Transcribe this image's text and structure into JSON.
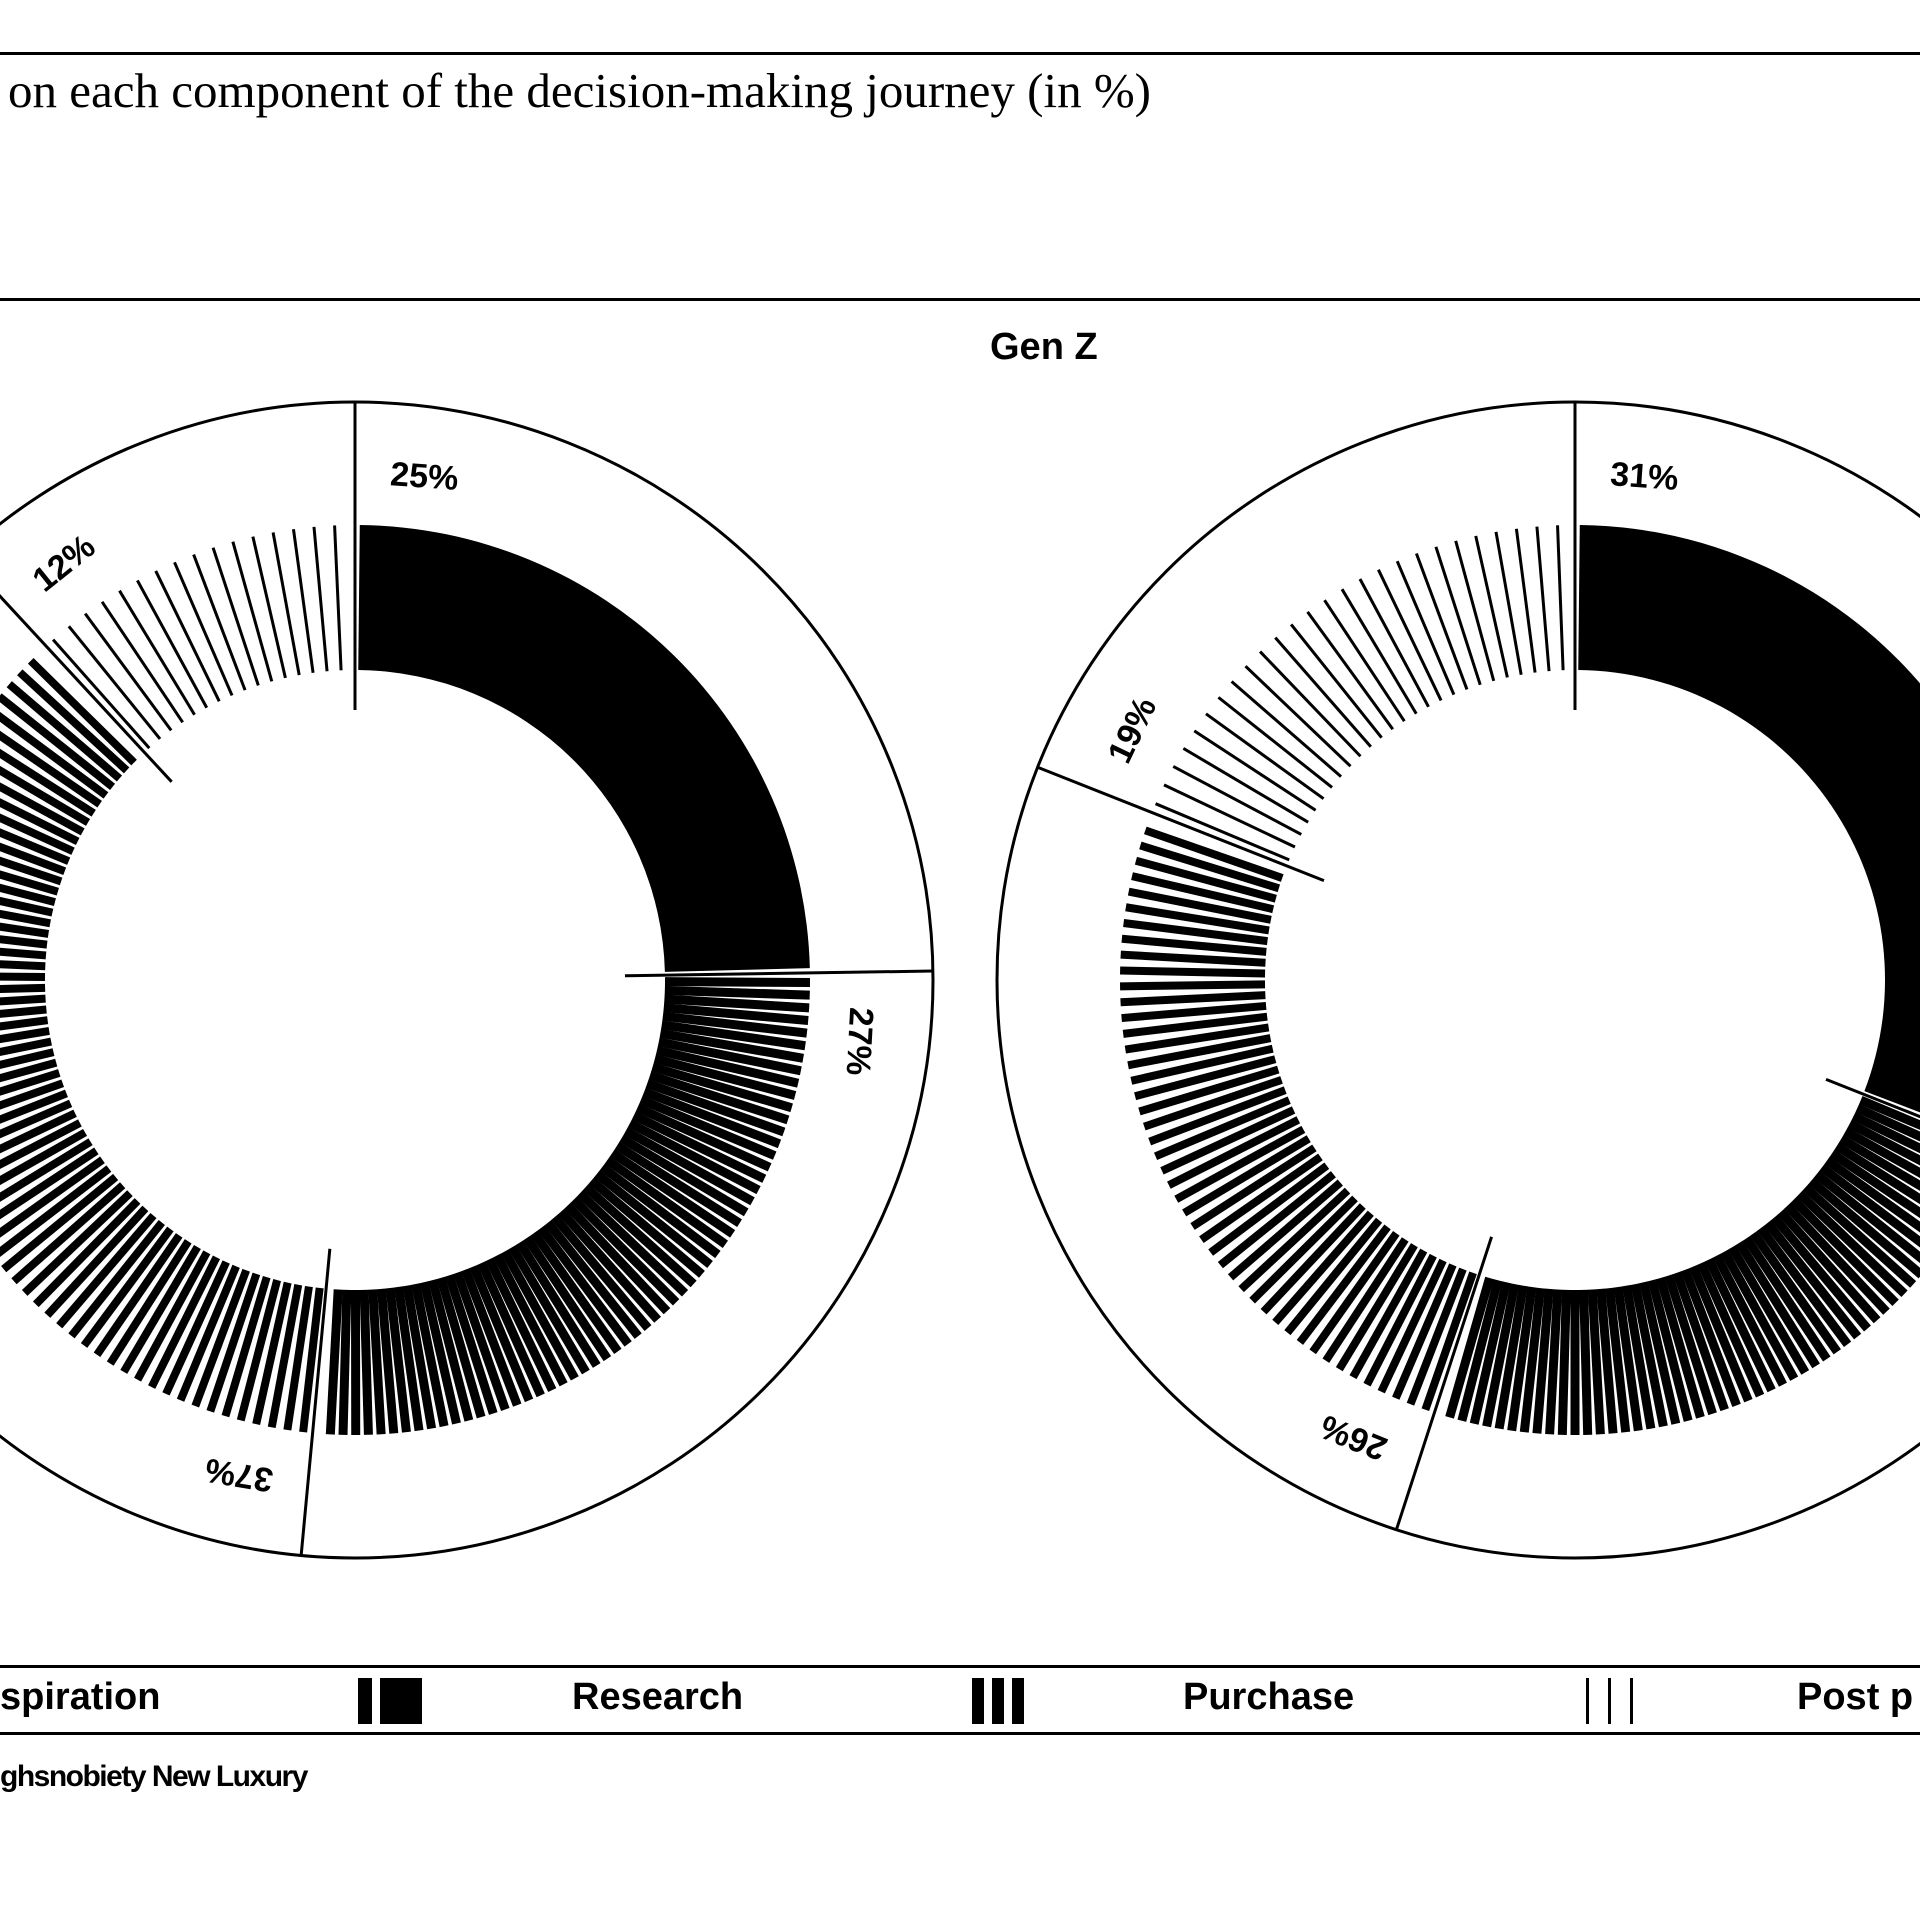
{
  "caption": "on each component of the decision-making journey (in %)",
  "panel_title": "Gen Z",
  "legend": {
    "items": [
      {
        "label": "spiration",
        "pattern": "solid"
      },
      {
        "label": "Research",
        "pattern": "dense"
      },
      {
        "label": "Purchase",
        "pattern": "medium"
      },
      {
        "label": "Post p",
        "pattern": "sparse"
      }
    ]
  },
  "source": "ghsnobiety New Luxury",
  "chart_data": [
    {
      "type": "pie",
      "title": "",
      "series": [
        {
          "name": "Inspiration",
          "value": 25,
          "label": "25%"
        },
        {
          "name": "Research",
          "value": 27,
          "label": "27%"
        },
        {
          "name": "Purchase",
          "value": 37,
          "label": "37%"
        },
        {
          "name": "Post purchase",
          "value": 12,
          "label": "12%"
        }
      ]
    },
    {
      "type": "pie",
      "title": "",
      "series": [
        {
          "name": "Inspiration",
          "value": 31,
          "label": "31%"
        },
        {
          "name": "Research",
          "value": 24,
          "label": ""
        },
        {
          "name": "Purchase",
          "value": 26,
          "label": "26%"
        },
        {
          "name": "Post purchase",
          "value": 19,
          "label": "19%"
        }
      ]
    }
  ]
}
